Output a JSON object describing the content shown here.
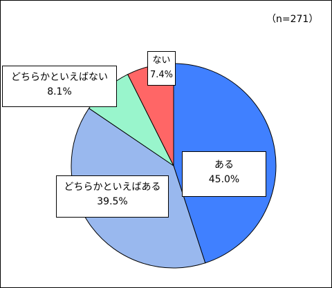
{
  "sample_note": "（n=271）",
  "chart_data": {
    "type": "pie",
    "n": 271,
    "slices": [
      {
        "label": "ある",
        "value": 45.0,
        "display": "45.0%",
        "color": "#4080FF"
      },
      {
        "label": "どちらかといえばある",
        "value": 39.5,
        "display": "39.5%",
        "color": "#99B8EE"
      },
      {
        "label": "どちらかといえばない",
        "value": 8.1,
        "display": "8.1%",
        "color": "#99F5CC"
      },
      {
        "label": "ない",
        "value": 7.4,
        "display": "7.4%",
        "color": "#FF6666"
      }
    ]
  }
}
